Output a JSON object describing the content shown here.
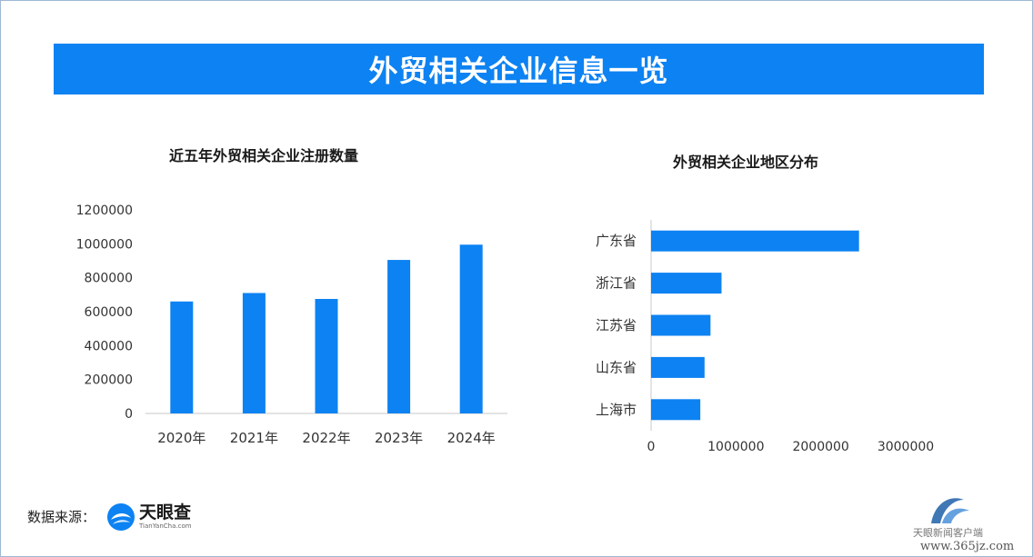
{
  "header": {
    "title": "外贸相关企业信息一览"
  },
  "source": {
    "label": "数据来源：",
    "logo_name": "天眼查",
    "logo_sub": "TianYanCha.com"
  },
  "watermark": {
    "text": "天眼新闻客户端",
    "url": "www.365jz.com"
  },
  "colors": {
    "accent": "#0d82f2",
    "bar": "#0d82f2"
  },
  "chart_data": [
    {
      "type": "bar",
      "title": "近五年外贸相关企业注册数量",
      "categories": [
        "2020年",
        "2021年",
        "2022年",
        "2023年",
        "2024年"
      ],
      "values": [
        660000,
        710000,
        675000,
        905000,
        995000
      ],
      "ylim": [
        0,
        1200000
      ],
      "yticks": [
        "0",
        "200000",
        "400000",
        "600000",
        "800000",
        "1000000",
        "1200000"
      ],
      "xlabel": "",
      "ylabel": "",
      "grid": false,
      "legend": "none"
    },
    {
      "type": "bar",
      "orientation": "horizontal",
      "title": "外贸相关企业地区分布",
      "categories": [
        "广东省",
        "浙江省",
        "江苏省",
        "山东省",
        "上海市"
      ],
      "values": [
        2450000,
        830000,
        700000,
        630000,
        580000
      ],
      "xlim": [
        0,
        3000000
      ],
      "xticks": [
        "0",
        "1000000",
        "2000000",
        "3000000"
      ],
      "xlabel": "",
      "ylabel": "",
      "grid": false,
      "legend": "none"
    }
  ]
}
